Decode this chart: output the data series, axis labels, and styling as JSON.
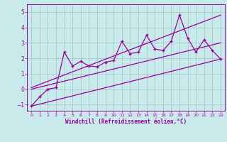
{
  "xlabel": "Windchill (Refroidissement éolien,°C)",
  "bg_color": "#c8eaea",
  "line_color": "#990099",
  "grid_color": "#aacccc",
  "xlim": [
    -0.5,
    23.5
  ],
  "ylim": [
    -1.4,
    5.5
  ],
  "yticks": [
    -1,
    0,
    1,
    2,
    3,
    4,
    5
  ],
  "xticks": [
    0,
    1,
    2,
    3,
    4,
    5,
    6,
    7,
    8,
    9,
    10,
    11,
    12,
    13,
    14,
    15,
    16,
    17,
    18,
    19,
    20,
    21,
    22,
    23
  ],
  "data_x": [
    0,
    1,
    2,
    3,
    4,
    5,
    6,
    7,
    8,
    9,
    10,
    11,
    12,
    13,
    14,
    15,
    16,
    17,
    18,
    19,
    20,
    21,
    22,
    23
  ],
  "data_y": [
    -1.1,
    -0.5,
    0.0,
    0.1,
    2.4,
    1.5,
    1.8,
    1.5,
    1.45,
    1.75,
    1.85,
    3.1,
    2.3,
    2.4,
    3.5,
    2.6,
    2.5,
    3.1,
    4.8,
    3.3,
    2.4,
    3.2,
    2.5,
    1.95
  ],
  "line1_x": [
    0,
    23
  ],
  "line1_y": [
    -1.1,
    1.95
  ],
  "line2_x": [
    0,
    23
  ],
  "line2_y": [
    0.0,
    3.0
  ],
  "line3_x": [
    0,
    23
  ],
  "line3_y": [
    0.1,
    4.8
  ]
}
